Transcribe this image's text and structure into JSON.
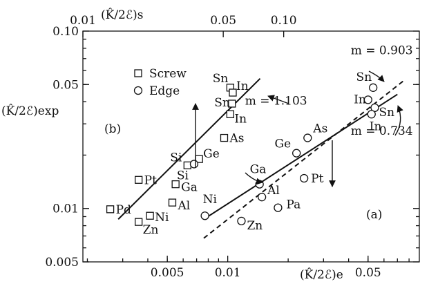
{
  "chart_data": {
    "type": "scatter",
    "scale": "log-log",
    "xlabel_bottom": "(K̂/2ℰ)e",
    "xlabel_top": "(K̂/2ℰ)s",
    "ylabel": "(K̂/2ℰ)exp",
    "xlim": [
      0.0019,
      0.09
    ],
    "ylim": [
      0.005,
      0.1
    ],
    "x_ticks_bottom": [
      {
        "value": 0.005,
        "label": "0.005"
      },
      {
        "value": 0.01,
        "label": "0.01"
      },
      {
        "value": 0.05,
        "label": "0.05"
      }
    ],
    "x_ticks_top": [
      {
        "value": 0.0019,
        "label": "0.01"
      },
      {
        "value": 0.0095,
        "label": "0.05"
      },
      {
        "value": 0.019,
        "label": "0.10"
      }
    ],
    "y_ticks": [
      {
        "value": 0.005,
        "label": "0.005"
      },
      {
        "value": 0.01,
        "label": "0.01"
      },
      {
        "value": 0.05,
        "label": "0.05"
      },
      {
        "value": 0.1,
        "label": "0.10"
      }
    ],
    "legend": {
      "placement": "upper-left",
      "entries": [
        {
          "marker": "square",
          "label": "Screw"
        },
        {
          "marker": "circle",
          "label": "Edge"
        }
      ]
    },
    "panel_labels": [
      "(b)",
      "(a)"
    ],
    "series": [
      {
        "name": "Screw",
        "marker": "square",
        "points": [
          {
            "label": "Sn",
            "x": 0.0103,
            "y": 0.048
          },
          {
            "label": "In",
            "x": 0.0106,
            "y": 0.045
          },
          {
            "label": "Sn",
            "x": 0.0105,
            "y": 0.039
          },
          {
            "label": "In",
            "x": 0.0103,
            "y": 0.034
          },
          {
            "label": "As",
            "x": 0.0096,
            "y": 0.025
          },
          {
            "label": "Ge",
            "x": 0.0072,
            "y": 0.019
          },
          {
            "label": "Si",
            "x": 0.0063,
            "y": 0.0175
          },
          {
            "label": "Pt",
            "x": 0.0036,
            "y": 0.0145
          },
          {
            "label": "Ga",
            "x": 0.0055,
            "y": 0.0137
          },
          {
            "label": "Pd",
            "x": 0.0026,
            "y": 0.0099
          },
          {
            "label": "Al",
            "x": 0.0053,
            "y": 0.0108
          },
          {
            "label": "Ni",
            "x": 0.0041,
            "y": 0.0091
          },
          {
            "label": "Zn",
            "x": 0.0036,
            "y": 0.0084
          }
        ]
      },
      {
        "name": "Edge",
        "marker": "circle",
        "points": [
          {
            "label": "Sn",
            "x": 0.053,
            "y": 0.048
          },
          {
            "label": "In",
            "x": 0.05,
            "y": 0.041
          },
          {
            "label": "Sn",
            "x": 0.054,
            "y": 0.037
          },
          {
            "label": "In",
            "x": 0.052,
            "y": 0.034
          },
          {
            "label": "As",
            "x": 0.025,
            "y": 0.025
          },
          {
            "label": "Ge",
            "x": 0.022,
            "y": 0.0205
          },
          {
            "label": "Si",
            "x": 0.0068,
            "y": 0.0178
          },
          {
            "label": "Pt",
            "x": 0.024,
            "y": 0.0148
          },
          {
            "label": "Ga",
            "x": 0.0144,
            "y": 0.0137
          },
          {
            "label": "Al",
            "x": 0.0148,
            "y": 0.0116
          },
          {
            "label": "Pa",
            "x": 0.0178,
            "y": 0.0101
          },
          {
            "label": "Ni",
            "x": 0.0077,
            "y": 0.0091
          },
          {
            "label": "Zn",
            "x": 0.0117,
            "y": 0.0085
          }
        ]
      }
    ],
    "fit_lines": [
      {
        "style": "solid",
        "x": [
          0.00285,
          0.0145
        ],
        "y": [
          0.0087,
          0.054
        ],
        "label": "m = 1.103",
        "label_pos": [
          0.0122,
          0.0385
        ]
      },
      {
        "style": "solid",
        "x": [
          0.0076,
          0.07
        ],
        "y": [
          0.0087,
          0.044
        ],
        "label": "m = 0.734",
        "label_pos": [
          0.041,
          0.026
        ]
      },
      {
        "style": "dashed",
        "x": [
          0.0076,
          0.076
        ],
        "y": [
          0.0068,
          0.053
        ],
        "label": "m = 0.903",
        "label_pos": [
          0.041,
          0.074
        ]
      }
    ],
    "annotation_values": {
      "Sn_screw_label_y": 0.048
    }
  }
}
